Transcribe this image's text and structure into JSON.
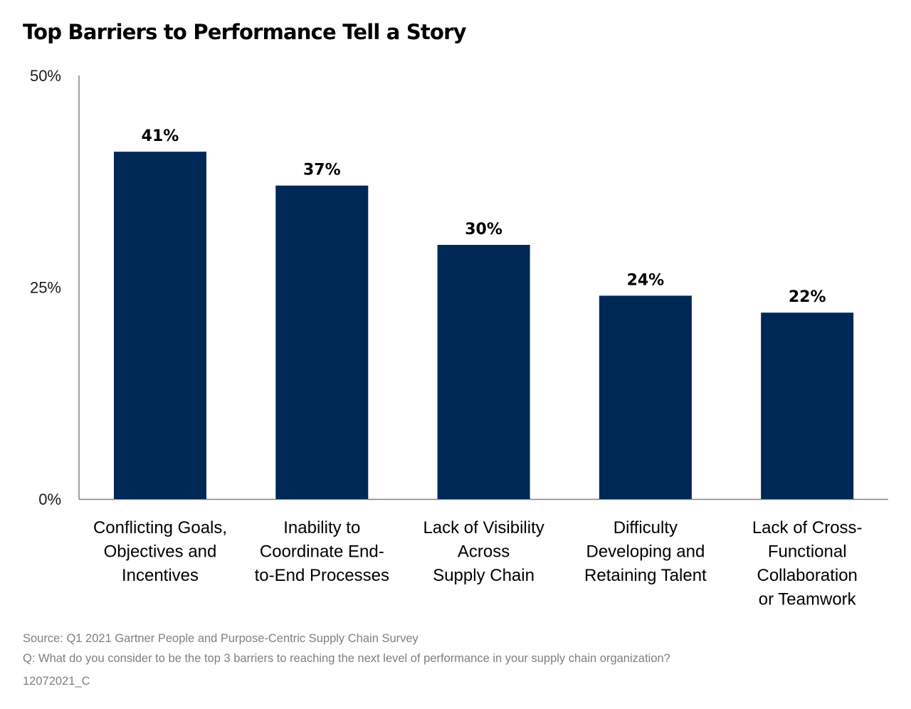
{
  "title": "Top Barriers to Performance Tell a Story",
  "footer": {
    "source": "Source: Q1 2021 Gartner People and Purpose-Centric Supply Chain Survey",
    "question": "Q: What do you consider to be the top 3 barriers to reaching the next level of performance in your supply chain organization?",
    "code": "12072021_C"
  },
  "colors": {
    "bar": "#002856",
    "axis": "#7f7f7f",
    "footnote": "#7f7f7f"
  },
  "chart_data": {
    "type": "bar",
    "title": "Top Barriers to Performance Tell a Story",
    "categories": [
      [
        "Conflicting Goals,",
        "Objectives and",
        "Incentives"
      ],
      [
        "Inability to",
        "Coordinate End-",
        "to-End Processes"
      ],
      [
        "Lack of Visibility",
        "Across",
        "Supply Chain"
      ],
      [
        "Difficulty",
        "Developing and",
        "Retaining Talent"
      ],
      [
        "Lack of Cross-",
        "Functional",
        "Collaboration",
        "or Teamwork"
      ]
    ],
    "values": [
      41,
      37,
      30,
      24,
      22
    ],
    "value_labels": [
      "41%",
      "37%",
      "30%",
      "24%",
      "22%"
    ],
    "ylim": [
      0,
      50
    ],
    "yticks": [
      0,
      25,
      50
    ],
    "ytick_labels": [
      "0%",
      "25%",
      "50%"
    ],
    "xlabel": "",
    "ylabel": "",
    "grid": false,
    "legend": "none"
  }
}
